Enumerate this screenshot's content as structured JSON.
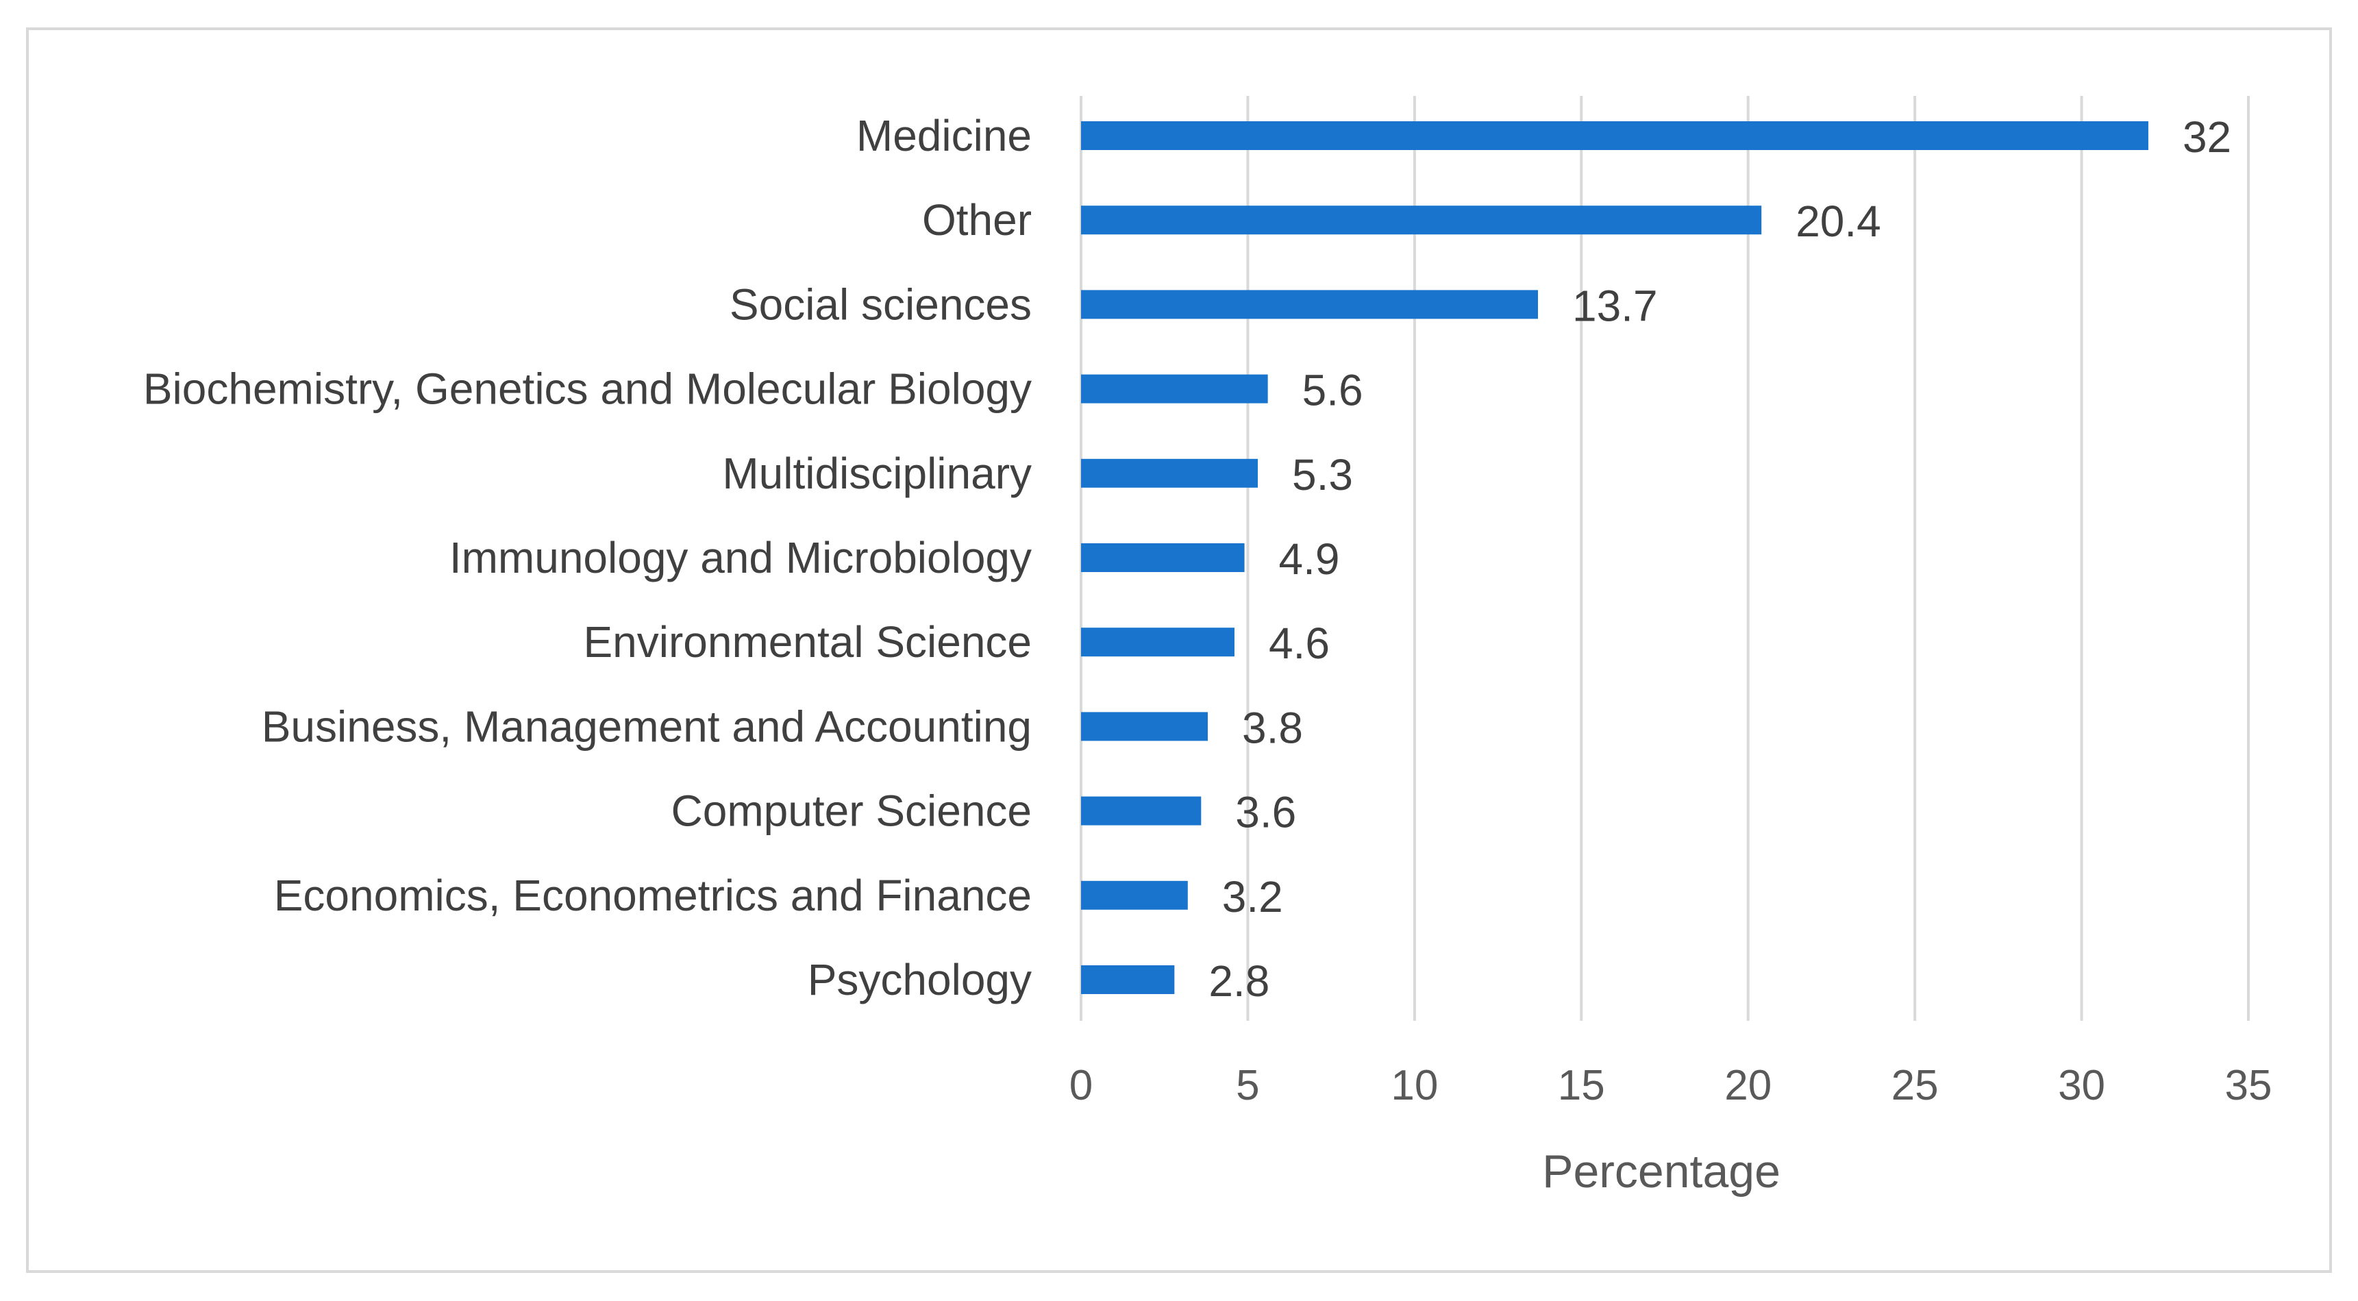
{
  "chart_data": {
    "type": "bar",
    "orientation": "horizontal",
    "title": "",
    "xlabel": "Percentage",
    "ylabel": "",
    "xlim": [
      0,
      35
    ],
    "xticks": [
      "0",
      "5",
      "10",
      "15",
      "20",
      "25",
      "30",
      "35"
    ],
    "grid": true,
    "legend": "none",
    "bar_color": "#1874cd",
    "categories": [
      "Medicine",
      "Other",
      "Social sciences",
      "Biochemistry, Genetics and Molecular Biology",
      "Multidisciplinary",
      "Immunology and Microbiology",
      "Environmental Science",
      "Business, Management and Accounting",
      "Computer Science",
      "Economics, Econometrics and Finance",
      "Psychology"
    ],
    "values": [
      32,
      20.4,
      13.7,
      5.6,
      5.3,
      4.9,
      4.6,
      3.8,
      3.6,
      3.2,
      2.8
    ],
    "value_labels": [
      "32",
      "20.4",
      "13.7",
      "5.6",
      "5.3",
      "4.9",
      "4.6",
      "3.8",
      "3.6",
      "3.2",
      "2.8"
    ]
  }
}
